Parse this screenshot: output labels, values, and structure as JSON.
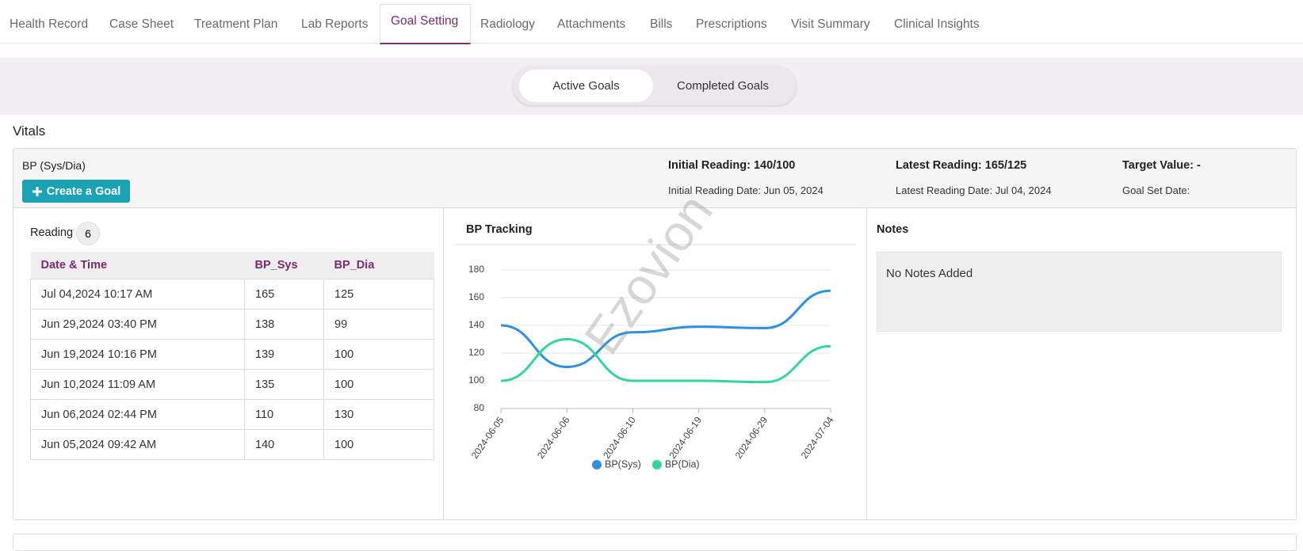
{
  "tabs": [
    "Health Record",
    "Case Sheet",
    "Treatment Plan",
    "Lab Reports",
    "Goal Setting",
    "Radiology",
    "Attachments",
    "Bills",
    "Prescriptions",
    "Visit Summary",
    "Clinical Insights"
  ],
  "toggle": [
    "Active Goals",
    "Completed Goals"
  ],
  "section_title": "Vitals",
  "card": {
    "title": "BP (Sys/Dia)",
    "button": "Create a Goal",
    "initial_reading": "Initial Reading: 140/100",
    "initial_reading_date": "Initial Reading Date: Jun 05, 2024",
    "latest_reading": "Latest Reading: 165/125",
    "latest_reading_date": "Latest Reading Date: Jul 04, 2024",
    "target_value": "Target Value: -",
    "goal_set_date": "Goal Set Date:"
  },
  "reading": {
    "label": "Reading",
    "count": 6
  },
  "table": {
    "headers": [
      "Date & Time",
      "BP_Sys",
      "BP_Dia"
    ],
    "rows": [
      [
        "Jul 04,2024 10:17 AM",
        "165",
        "125"
      ],
      [
        "Jun 29,2024 03:40 PM",
        "138",
        "99"
      ],
      [
        "Jun 19,2024 10:16 PM",
        "139",
        "100"
      ],
      [
        "Jun 10,2024 11:09 AM",
        "135",
        "100"
      ],
      [
        "Jun 06,2024 02:44 PM",
        "110",
        "130"
      ],
      [
        "Jun 05,2024 09:42 AM",
        "140",
        "100"
      ]
    ]
  },
  "chart_data": {
    "type": "line",
    "title": "BP Tracking",
    "categories": [
      "2024-06-05",
      "2024-06-06",
      "2024-06-10",
      "2024-06-19",
      "2024-06-29",
      "2024-07-04"
    ],
    "series": [
      {
        "name": "BP(Sys)",
        "color": "#2f8fe0",
        "values": [
          140,
          110,
          135,
          139,
          138,
          165
        ]
      },
      {
        "name": "BP(Dia)",
        "color": "#33d69a",
        "values": [
          100,
          130,
          100,
          100,
          99,
          125
        ]
      }
    ],
    "ylim": [
      80,
      180
    ],
    "yticks": [
      80,
      100,
      120,
      140,
      160,
      180
    ],
    "grid": true
  },
  "notes": {
    "title": "Notes",
    "text": "No Notes Added"
  },
  "watermark": "Ezovion"
}
